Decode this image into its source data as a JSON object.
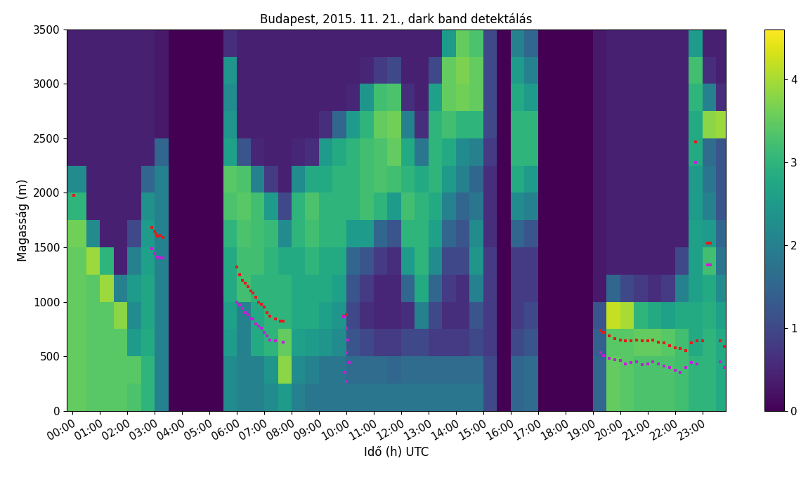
{
  "chart_data": {
    "type": "heatmap",
    "title": "Budapest, 2015. 11. 21., dark band detektálás",
    "x_label": "Idő (h) UTC",
    "y_label": "Magasság (m)",
    "xlim": [
      -0.2,
      23.85
    ],
    "ylim": [
      0,
      3500
    ],
    "xticks": [
      {
        "value": 0,
        "label": "00:00"
      },
      {
        "value": 1,
        "label": "01:00"
      },
      {
        "value": 2,
        "label": "02:00"
      },
      {
        "value": 3,
        "label": "03:00"
      },
      {
        "value": 4,
        "label": "04:00"
      },
      {
        "value": 5,
        "label": "05:00"
      },
      {
        "value": 6,
        "label": "06:00"
      },
      {
        "value": 7,
        "label": "07:00"
      },
      {
        "value": 8,
        "label": "08:00"
      },
      {
        "value": 9,
        "label": "09:00"
      },
      {
        "value": 10,
        "label": "10:00"
      },
      {
        "value": 11,
        "label": "11:00"
      },
      {
        "value": 12,
        "label": "12:00"
      },
      {
        "value": 13,
        "label": "13:00"
      },
      {
        "value": 14,
        "label": "14:00"
      },
      {
        "value": 15,
        "label": "15:00"
      },
      {
        "value": 16,
        "label": "16:00"
      },
      {
        "value": 17,
        "label": "17:00"
      },
      {
        "value": 18,
        "label": "18:00"
      },
      {
        "value": 19,
        "label": "19:00"
      },
      {
        "value": 20,
        "label": "20:00"
      },
      {
        "value": 21,
        "label": "21:00"
      },
      {
        "value": 22,
        "label": "22:00"
      },
      {
        "value": 23,
        "label": "23:00"
      }
    ],
    "yticks": [
      0,
      500,
      1000,
      1500,
      2000,
      2500,
      3000,
      3500
    ],
    "x_edges": [
      -0.2,
      0.5,
      1.0,
      1.5,
      2.0,
      2.5,
      3.0,
      3.5,
      4.0,
      4.5,
      5.0,
      5.5,
      6.0,
      6.5,
      7.0,
      7.5,
      8.0,
      8.5,
      9.0,
      9.5,
      10.0,
      10.5,
      11.0,
      11.5,
      12.0,
      12.5,
      13.0,
      13.5,
      14.0,
      14.5,
      15.0,
      15.5,
      16.0,
      16.5,
      17.0,
      17.5,
      18.0,
      18.5,
      19.0,
      19.5,
      20.0,
      20.5,
      21.0,
      21.5,
      22.0,
      22.5,
      23.0,
      23.5,
      23.85
    ],
    "y_edges": [
      0,
      250,
      500,
      750,
      1000,
      1250,
      1500,
      1750,
      2000,
      2250,
      2500,
      2750,
      3000,
      3250,
      3500
    ],
    "cells_by_time": [
      [
        3.5,
        3.5,
        3.5,
        3.5,
        3.5,
        3.5,
        3.6,
        3.0,
        2.2,
        0.4,
        0.4,
        0.4,
        0.4,
        0.4
      ],
      [
        3.4,
        3.4,
        3.4,
        3.4,
        3.4,
        3.9,
        2.2,
        0.4,
        0.4,
        0.4,
        0.4,
        0.4,
        0.4,
        0.4
      ],
      [
        3.4,
        3.4,
        3.4,
        3.4,
        3.9,
        3.0,
        0.4,
        0.4,
        0.4,
        0.4,
        0.4,
        0.4,
        0.4,
        0.4
      ],
      [
        3.4,
        3.4,
        3.4,
        3.8,
        2.0,
        0.4,
        0.4,
        0.4,
        0.4,
        0.4,
        0.4,
        0.4,
        0.4,
        0.4
      ],
      [
        3.3,
        3.4,
        2.5,
        2.2,
        2.5,
        2.0,
        1.0,
        0.4,
        0.4,
        0.4,
        0.4,
        0.4,
        0.4,
        0.4
      ],
      [
        3.0,
        3.0,
        2.8,
        2.7,
        2.7,
        2.6,
        2.5,
        2.3,
        1.5,
        0.4,
        0.4,
        0.4,
        0.4,
        0.4
      ],
      [
        2.0,
        2.0,
        2.0,
        2.0,
        2.0,
        2.0,
        2.0,
        2.0,
        2.0,
        1.5,
        0.3,
        0.3,
        0.3,
        0.3
      ],
      [
        0,
        0,
        0,
        0,
        0,
        0,
        0,
        0,
        0,
        0,
        0,
        0,
        0,
        0
      ],
      [
        0,
        0,
        0,
        0,
        0,
        0,
        0,
        0,
        0,
        0,
        0,
        0,
        0,
        0
      ],
      [
        0,
        0,
        0,
        0,
        0,
        0,
        0,
        0,
        0,
        0,
        0,
        0,
        0,
        0
      ],
      [
        0,
        0,
        0,
        0,
        0,
        0,
        0,
        0,
        0,
        0,
        0,
        0,
        0,
        0
      ],
      [
        2.2,
        2.2,
        2.5,
        2.6,
        2.8,
        2.8,
        3.0,
        3.3,
        3.4,
        2.6,
        2.4,
        2.2,
        2.4,
        0.6
      ],
      [
        2.0,
        2.0,
        2.0,
        2.0,
        3.2,
        3.2,
        3.3,
        3.4,
        3.3,
        1.2,
        0.4,
        0.4,
        0.4,
        0.4
      ],
      [
        2.0,
        2.0,
        2.8,
        2.8,
        3.0,
        3.2,
        3.2,
        3.2,
        2.0,
        0.5,
        0.4,
        0.4,
        0.4,
        0.4
      ],
      [
        2.2,
        2.4,
        3.0,
        3.0,
        3.0,
        3.0,
        3.1,
        2.5,
        0.8,
        0.4,
        0.4,
        0.4,
        0.4,
        0.4
      ],
      [
        2.5,
        3.8,
        3.5,
        3.0,
        3.0,
        2.8,
        2.2,
        1.0,
        0.4,
        0.4,
        0.4,
        0.4,
        0.4,
        0.4
      ],
      [
        2.0,
        2.2,
        2.6,
        2.8,
        2.8,
        2.8,
        3.0,
        3.0,
        2.2,
        0.5,
        0.4,
        0.4,
        0.4,
        0.4
      ],
      [
        1.8,
        2.0,
        2.5,
        2.8,
        2.8,
        3.0,
        3.2,
        3.3,
        2.8,
        0.6,
        0.4,
        0.4,
        0.4,
        0.4
      ],
      [
        1.8,
        1.8,
        2.4,
        2.6,
        2.8,
        2.8,
        3.0,
        3.0,
        2.8,
        2.5,
        0.6,
        0.4,
        0.4,
        0.4
      ],
      [
        1.8,
        1.8,
        2.2,
        2.4,
        2.6,
        2.8,
        3.0,
        3.0,
        3.0,
        2.8,
        1.5,
        0.4,
        0.4,
        0.4
      ],
      [
        1.8,
        1.6,
        1.2,
        1.0,
        1.2,
        1.5,
        2.5,
        3.0,
        3.0,
        3.0,
        2.5,
        0.5,
        0.4,
        0.4
      ],
      [
        1.8,
        1.6,
        1.0,
        0.6,
        0.8,
        1.2,
        2.5,
        3.2,
        3.2,
        3.2,
        3.0,
        2.4,
        0.5,
        0.4
      ],
      [
        1.8,
        1.6,
        0.8,
        0.5,
        0.5,
        0.8,
        1.5,
        3.0,
        3.3,
        3.3,
        3.5,
        3.2,
        0.8,
        0.4
      ],
      [
        1.8,
        1.5,
        0.8,
        0.5,
        0.5,
        0.6,
        1.2,
        2.5,
        3.2,
        3.5,
        3.6,
        3.3,
        1.0,
        0.4
      ],
      [
        1.8,
        1.6,
        1.0,
        0.6,
        1.5,
        2.5,
        3.0,
        3.2,
        3.0,
        2.8,
        2.0,
        0.6,
        0.4,
        0.4
      ],
      [
        1.8,
        1.6,
        1.0,
        2.0,
        2.8,
        3.0,
        3.0,
        3.0,
        2.8,
        1.8,
        0.6,
        0.4,
        0.4,
        0.4
      ],
      [
        1.8,
        1.6,
        0.8,
        1.0,
        1.5,
        2.2,
        2.6,
        2.8,
        3.0,
        3.0,
        3.0,
        2.6,
        1.0,
        0.4
      ],
      [
        1.8,
        1.6,
        0.8,
        0.6,
        0.8,
        1.0,
        1.5,
        2.0,
        2.5,
        2.8,
        3.2,
        3.5,
        3.5,
        2.5
      ],
      [
        1.8,
        1.6,
        0.8,
        0.6,
        0.6,
        1.0,
        1.2,
        1.5,
        2.0,
        2.2,
        3.0,
        3.6,
        3.7,
        3.5
      ],
      [
        1.8,
        1.6,
        1.0,
        1.2,
        2.0,
        2.4,
        2.2,
        1.8,
        1.5,
        2.0,
        3.0,
        3.5,
        3.5,
        3.3
      ],
      [
        1.0,
        1.0,
        0.8,
        0.8,
        0.8,
        0.8,
        0.6,
        0.6,
        0.6,
        0.8,
        1.0,
        1.0,
        1.0,
        1.0
      ],
      [
        0,
        0,
        0,
        0,
        0,
        0,
        0,
        0,
        0,
        0,
        0,
        0,
        0,
        0
      ],
      [
        1.5,
        1.5,
        1.0,
        0.8,
        0.8,
        0.8,
        1.5,
        2.2,
        2.8,
        3.0,
        3.0,
        2.8,
        2.5,
        2.0
      ],
      [
        1.6,
        1.6,
        1.2,
        1.0,
        0.8,
        0.8,
        1.2,
        2.0,
        2.5,
        3.0,
        3.0,
        2.5,
        2.0,
        1.5
      ],
      [
        0,
        0,
        0,
        0,
        0,
        0,
        0,
        0,
        0,
        0,
        0,
        0,
        0,
        0
      ],
      [
        0,
        0,
        0,
        0,
        0,
        0,
        0,
        0,
        0,
        0,
        0,
        0,
        0,
        0
      ],
      [
        0,
        0,
        0,
        0,
        0,
        0,
        0,
        0,
        0,
        0,
        0,
        0,
        0,
        0
      ],
      [
        0,
        0,
        0,
        0,
        0,
        0,
        0,
        0,
        0,
        0,
        0,
        0,
        0,
        0
      ],
      [
        1.5,
        1.5,
        1.4,
        1.2,
        0.3,
        0.3,
        0.3,
        0.3,
        0.3,
        0.3,
        0.3,
        0.3,
        0.3,
        0.3
      ],
      [
        3.5,
        3.5,
        3.4,
        4.2,
        1.5,
        0.4,
        0.4,
        0.4,
        0.4,
        0.4,
        0.4,
        0.4,
        0.4,
        0.4
      ],
      [
        3.4,
        3.4,
        3.4,
        4.0,
        1.0,
        0.4,
        0.4,
        0.4,
        0.4,
        0.4,
        0.4,
        0.4,
        0.4,
        0.4
      ],
      [
        3.3,
        3.3,
        3.5,
        3.0,
        0.8,
        0.4,
        0.4,
        0.4,
        0.4,
        0.4,
        0.4,
        0.4,
        0.4,
        0.4
      ],
      [
        3.3,
        3.3,
        3.5,
        2.8,
        0.6,
        0.4,
        0.4,
        0.4,
        0.4,
        0.4,
        0.4,
        0.4,
        0.4,
        0.4
      ],
      [
        3.3,
        3.3,
        3.4,
        2.6,
        0.8,
        0.4,
        0.4,
        0.4,
        0.4,
        0.4,
        0.4,
        0.4,
        0.4,
        0.4
      ],
      [
        3.2,
        3.2,
        3.2,
        2.8,
        2.0,
        1.0,
        0.4,
        0.4,
        0.4,
        0.4,
        0.4,
        0.4,
        0.4,
        0.4
      ],
      [
        3.0,
        3.0,
        2.8,
        2.8,
        2.6,
        2.6,
        2.6,
        2.5,
        2.5,
        2.8,
        2.8,
        3.0,
        3.2,
        2.5
      ],
      [
        3.0,
        3.0,
        3.0,
        2.9,
        2.8,
        3.2,
        2.5,
        2.0,
        1.8,
        1.6,
        3.8,
        2.0,
        0.6,
        0.4
      ],
      [
        2.8,
        2.8,
        2.8,
        2.6,
        2.2,
        1.8,
        1.5,
        1.2,
        1.2,
        1.2,
        3.9,
        0.6,
        0.4,
        0.4
      ]
    ],
    "colorbar_range": [
      0,
      4.6
    ],
    "colorbar_ticks": [
      0,
      1,
      2,
      3,
      4
    ],
    "series": [
      {
        "type": "scatter",
        "color": "#e41a1c",
        "marker": "s",
        "x": [
          0.05,
          2.9,
          3.0,
          3.05,
          3.1,
          3.2,
          3.3,
          6.0,
          6.1,
          6.2,
          6.3,
          6.4,
          6.5,
          6.6,
          6.7,
          6.8,
          6.9,
          7.0,
          7.1,
          7.2,
          7.4,
          7.6,
          7.7,
          9.9,
          10.0,
          19.3,
          19.4,
          19.6,
          19.8,
          20.0,
          20.2,
          20.4,
          20.6,
          20.8,
          21.0,
          21.2,
          21.4,
          21.6,
          21.8,
          22.0,
          22.2,
          22.4,
          22.6,
          22.8,
          23.0,
          22.75,
          23.2,
          23.3,
          23.65,
          23.8
        ],
        "y": [
          1980,
          1680,
          1650,
          1620,
          1600,
          1610,
          1590,
          1320,
          1250,
          1200,
          1170,
          1140,
          1100,
          1080,
          1040,
          1000,
          980,
          950,
          900,
          870,
          840,
          820,
          820,
          870,
          880,
          740,
          720,
          690,
          660,
          650,
          640,
          640,
          650,
          640,
          640,
          650,
          630,
          620,
          600,
          580,
          570,
          550,
          620,
          640,
          640,
          2470,
          1540,
          1540,
          640,
          590
        ]
      },
      {
        "type": "scatter",
        "color": "#c21fd6",
        "marker": "s",
        "x": [
          2.9,
          3.0,
          3.1,
          3.2,
          3.3,
          6.0,
          6.1,
          6.2,
          6.3,
          6.4,
          6.5,
          6.6,
          6.7,
          6.8,
          6.9,
          7.0,
          7.1,
          7.2,
          7.4,
          7.7,
          9.9,
          10.0,
          10.05,
          10.0,
          10.1,
          9.95,
          10.0,
          19.3,
          19.4,
          19.6,
          19.8,
          20.0,
          20.2,
          20.4,
          20.6,
          20.8,
          21.0,
          21.2,
          21.4,
          21.6,
          21.8,
          22.0,
          22.2,
          22.4,
          22.6,
          22.8,
          22.75,
          23.2,
          23.3,
          23.65,
          23.8
        ],
        "y": [
          1490,
          1440,
          1410,
          1400,
          1400,
          1000,
          970,
          940,
          900,
          880,
          850,
          840,
          800,
          780,
          760,
          720,
          690,
          650,
          640,
          630,
          860,
          760,
          650,
          530,
          440,
          350,
          270,
          530,
          510,
          480,
          470,
          460,
          430,
          440,
          450,
          420,
          430,
          450,
          430,
          410,
          400,
          370,
          350,
          400,
          440,
          430,
          2280,
          1340,
          1340,
          450,
          400
        ]
      }
    ]
  }
}
